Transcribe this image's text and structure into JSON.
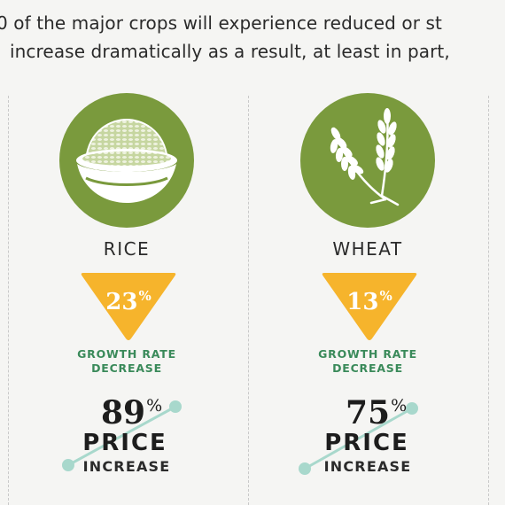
{
  "intro": {
    "line1": "0 of the major crops will experience reduced or st",
    "line2": "increase dramatically as a result, at least in part,"
  },
  "colors": {
    "icon_green": "#7a9a3d",
    "triangle_orange": "#f6b42c",
    "growth_text_green": "#3a8a5a",
    "trend_line": "#a8d8cc"
  },
  "crops": [
    {
      "name": "RICE",
      "icon": "rice-bowl-icon",
      "growth_value": "23",
      "growth_unit": "%",
      "growth_label_line1": "GROWTH RATE",
      "growth_label_line2": "DECREASE",
      "price_value": "89",
      "price_unit": "%",
      "price_word": "PRICE",
      "increase_word": "INCREASE"
    },
    {
      "name": "WHEAT",
      "icon": "wheat-stalks-icon",
      "growth_value": "13",
      "growth_unit": "%",
      "growth_label_line1": "GROWTH RATE",
      "growth_label_line2": "DECREASE",
      "price_value": "75",
      "price_unit": "%",
      "price_word": "PRICE",
      "increase_word": "INCREASE"
    }
  ]
}
